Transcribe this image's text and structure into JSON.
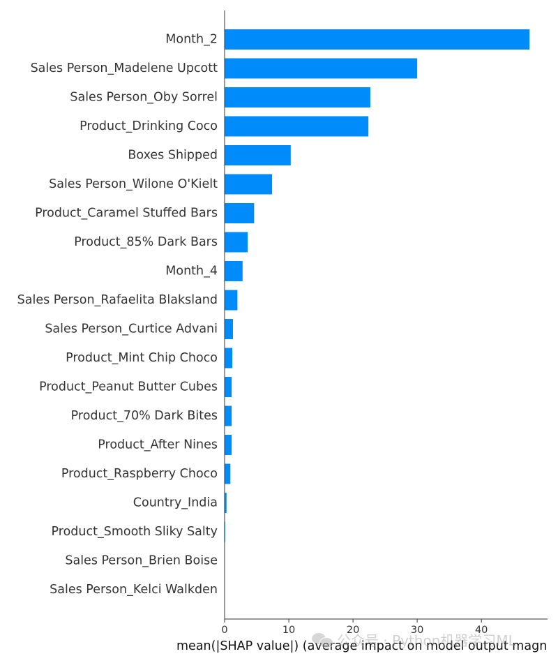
{
  "chart_data": {
    "type": "bar",
    "orientation": "horizontal",
    "categories": [
      "Month_2",
      "Sales Person_Madelene Upcott",
      "Sales Person_Oby Sorrel",
      "Product_Drinking Coco",
      "Boxes Shipped",
      "Sales Person_Wilone O'Kielt",
      "Product_Caramel Stuffed Bars",
      "Product_85% Dark Bars",
      "Month_4",
      "Sales Person_Rafaelita Blaksland",
      "Sales Person_Curtice Advani",
      "Product_Mint Chip Choco",
      "Product_Peanut Butter Cubes",
      "Product_70% Dark Bites",
      "Product_After Nines",
      "Product_Raspberry Choco",
      "Country_India",
      "Product_Smooth Sliky Salty",
      "Sales Person_Brien Boise",
      "Sales Person_Kelci Walkden"
    ],
    "values": [
      47.5,
      30.0,
      22.7,
      22.4,
      10.3,
      7.4,
      4.6,
      3.6,
      2.8,
      2.0,
      1.3,
      1.2,
      1.1,
      1.1,
      1.1,
      0.9,
      0.3,
      0.1,
      0.0,
      0.0
    ],
    "xlabel": "mean(|SHAP value|) (average impact on model output magn",
    "ylabel": "",
    "xlim": [
      0,
      50.3
    ],
    "xticks": [
      0,
      10,
      20,
      30,
      40
    ],
    "grid": false,
    "bar_color": "#008bfb"
  },
  "watermark": {
    "text": "公众号 · Python机器学习ML"
  }
}
